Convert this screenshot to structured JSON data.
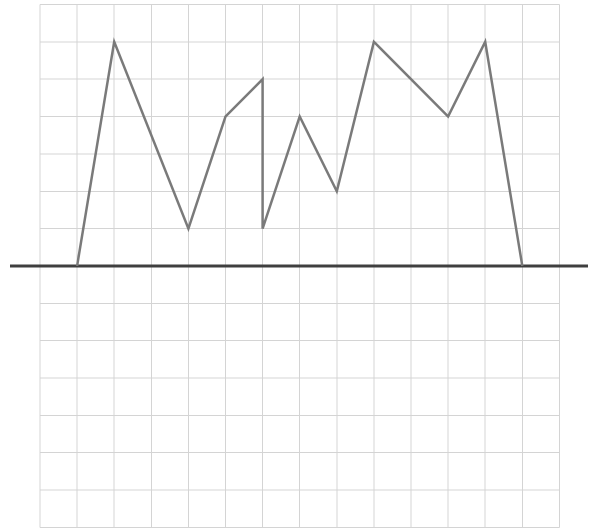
{
  "diagram": {
    "grid": {
      "columns": 14,
      "rows": 14
    },
    "baseline_row": 7,
    "profile": {
      "color": "#7a7a7a",
      "points": [
        [
          1,
          0
        ],
        [
          2,
          6
        ],
        [
          4,
          1
        ],
        [
          5,
          4
        ],
        [
          6,
          5
        ],
        [
          6,
          1
        ],
        [
          7,
          4
        ],
        [
          8,
          2
        ],
        [
          9,
          6
        ],
        [
          11,
          4
        ],
        [
          12,
          6
        ],
        [
          13,
          0
        ]
      ]
    },
    "baseline_color": "#3f3f3f",
    "grid_color": "#d4d4d4"
  }
}
